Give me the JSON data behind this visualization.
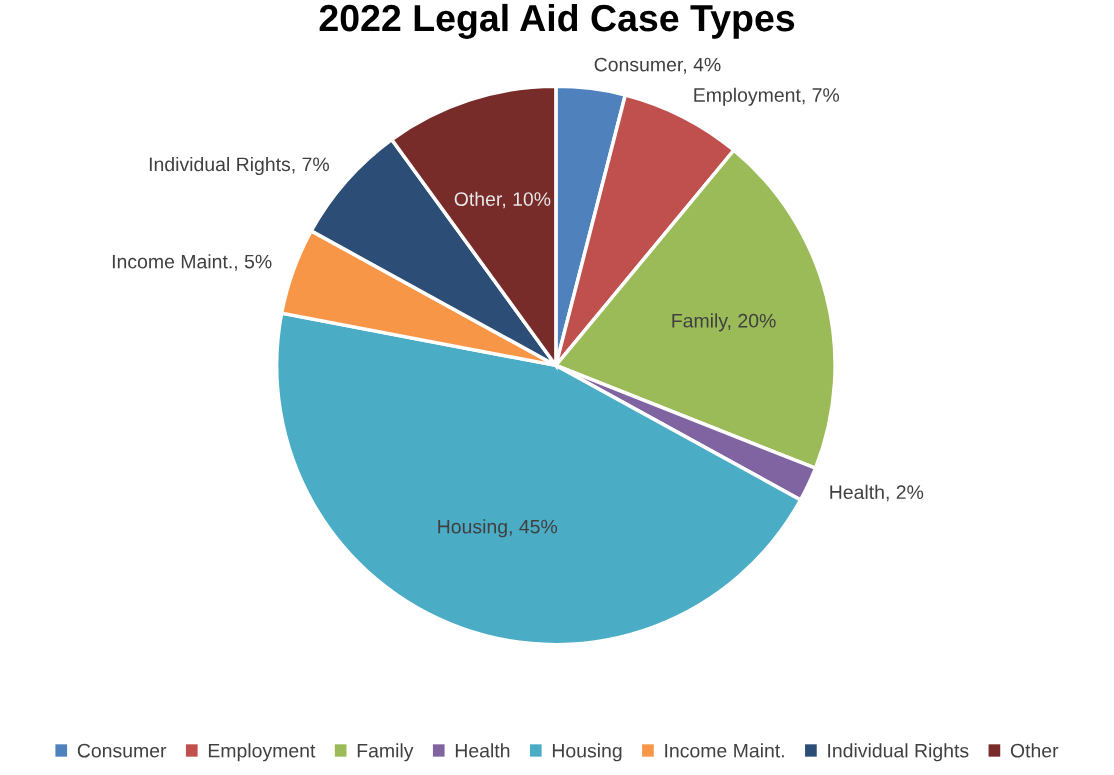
{
  "chart_data": {
    "type": "pie",
    "title": "2022 Legal Aid Case Types",
    "categories": [
      "Consumer",
      "Employment",
      "Family",
      "Health",
      "Housing",
      "Income Maint.",
      "Individual Rights",
      "Other"
    ],
    "values": [
      4,
      7,
      20,
      2,
      45,
      5,
      7,
      10
    ],
    "value_labels": [
      "Consumer, 4%",
      "Employment, 7%",
      "Family, 20%",
      "Health, 2%",
      "Housing, 45%",
      "Income Maint., 5%",
      "Individual Rights, 7%",
      "Other, 10%"
    ],
    "colors": [
      "#4f81bd",
      "#c0504d",
      "#9bbb59",
      "#8064a2",
      "#4bacc6",
      "#f79646",
      "#2c4d75",
      "#772c2a"
    ],
    "legend": "bottom"
  }
}
